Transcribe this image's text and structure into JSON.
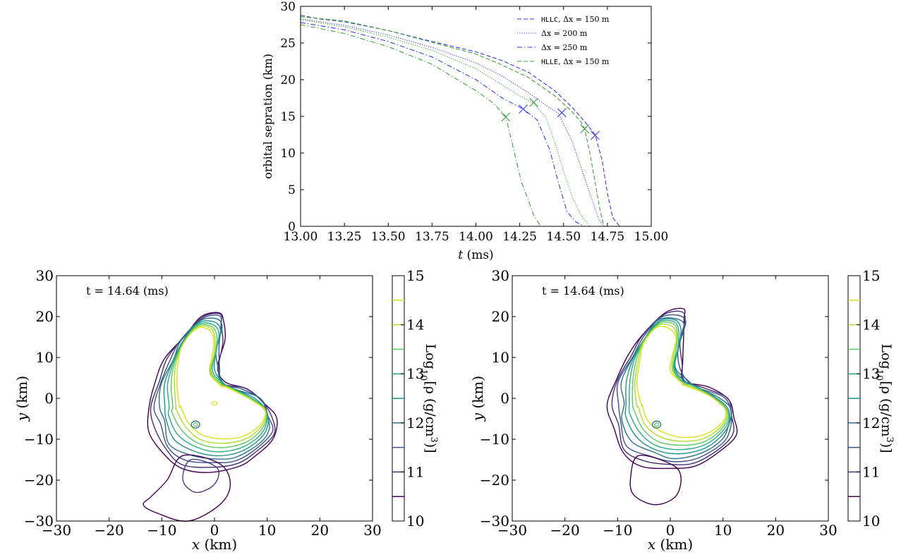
{
  "chart_data": [
    {
      "type": "line",
      "xlabel": "t (ms)",
      "ylabel": "orbital sepration (km)",
      "xlim": [
        13.0,
        15.0
      ],
      "ylim": [
        0,
        30
      ],
      "xticks": [
        "13.00",
        "13.25",
        "13.50",
        "13.75",
        "14.00",
        "14.25",
        "14.50",
        "14.75",
        "15.00"
      ],
      "yticks": [
        "0",
        "5",
        "10",
        "15",
        "20",
        "25",
        "30"
      ],
      "legend_position": "top-right",
      "series": [
        {
          "name_mono": "HLLC",
          "name": ", Δx = 150 m",
          "color": "#3a3af0",
          "style": "dashed",
          "x": [
            13.0,
            13.1,
            13.25,
            13.5,
            13.75,
            14.0,
            14.15,
            14.3,
            14.45,
            14.55,
            14.62,
            14.68,
            14.72,
            14.75,
            14.78,
            14.82,
            15.0
          ],
          "y": [
            28.8,
            28.3,
            27.9,
            26.7,
            25.2,
            23.8,
            22.6,
            21.0,
            18.5,
            16.2,
            14.3,
            12.5,
            9.0,
            4.5,
            1.2,
            0.0,
            0.0
          ],
          "marker": {
            "x": 14.68,
            "y": 12.4
          }
        },
        {
          "name": "Δx = 200 m",
          "color": "#3a3af0",
          "style": "dotted",
          "x": [
            13.0,
            13.25,
            13.5,
            13.75,
            14.0,
            14.15,
            14.3,
            14.4,
            14.47,
            14.55,
            14.6,
            14.65,
            14.7,
            14.73
          ],
          "y": [
            28.3,
            27.4,
            26.1,
            24.4,
            22.3,
            20.5,
            18.2,
            16.5,
            15.4,
            11.5,
            8.0,
            4.5,
            1.0,
            0.0
          ],
          "marker": {
            "x": 14.49,
            "y": 15.5
          }
        },
        {
          "name": "Δx = 250 m",
          "color": "#3a3af0",
          "style": "dashdot",
          "x": [
            13.0,
            13.25,
            13.5,
            13.75,
            14.0,
            14.15,
            14.27,
            14.35,
            14.42,
            14.47,
            14.52,
            14.57,
            14.62,
            14.7
          ],
          "y": [
            27.8,
            26.8,
            25.2,
            23.1,
            20.0,
            17.5,
            16.0,
            14.5,
            10.5,
            6.0,
            2.0,
            0.6,
            0.0,
            0.0
          ],
          "marker": {
            "x": 14.27,
            "y": 16.0
          }
        },
        {
          "name_mono": "HLLE",
          "name": ", Δx = 150 m",
          "color": "#3ca13c",
          "style": "dashed",
          "x": [
            13.0,
            13.25,
            13.5,
            13.75,
            14.0,
            14.15,
            14.3,
            14.45,
            14.55,
            14.6,
            14.62,
            14.65,
            14.68,
            14.71,
            14.73
          ],
          "y": [
            28.6,
            28.0,
            26.7,
            25.1,
            23.5,
            22.0,
            20.3,
            17.8,
            15.6,
            14.2,
            13.3,
            10.0,
            6.0,
            2.0,
            0.0
          ],
          "marker": {
            "x": 14.62,
            "y": 13.3
          }
        },
        {
          "name": "",
          "color": "#3ca13c",
          "style": "dotted",
          "x": [
            13.0,
            13.25,
            13.5,
            13.75,
            14.0,
            14.15,
            14.25,
            14.33,
            14.4,
            14.45,
            14.5,
            14.55,
            14.6,
            14.65
          ],
          "y": [
            28.2,
            27.2,
            25.8,
            24.0,
            21.5,
            19.3,
            17.8,
            16.8,
            14.8,
            11.5,
            7.5,
            4.0,
            1.5,
            0.0
          ],
          "marker": {
            "x": 14.33,
            "y": 16.9
          }
        },
        {
          "name": "",
          "color": "#3ca13c",
          "style": "dashdot",
          "x": [
            13.0,
            13.25,
            13.5,
            13.75,
            14.0,
            14.1,
            14.17,
            14.22,
            14.26,
            14.3,
            14.33,
            14.37,
            14.4
          ],
          "y": [
            27.5,
            26.3,
            24.5,
            22.1,
            18.5,
            16.8,
            15.0,
            10.0,
            6.0,
            3.5,
            1.5,
            0.0,
            0.0
          ],
          "marker": {
            "x": 14.17,
            "y": 14.9
          }
        }
      ]
    },
    {
      "type": "contour",
      "annotation": "t = 14.64 (ms)",
      "xlabel": "x (km)",
      "ylabel": "y (km)",
      "xlim": [
        -30,
        30
      ],
      "ylim": [
        -30,
        30
      ],
      "xticks": [
        "−30",
        "−20",
        "−10",
        "0",
        "10",
        "20",
        "30"
      ],
      "yticks": [
        "−30",
        "−20",
        "−10",
        "0",
        "10",
        "20",
        "30"
      ],
      "colorbar": {
        "label": "Log10[ρ (g/cm3)]",
        "label_parts": {
          "pre": "Log",
          "sub": "10",
          "mid": "[ρ (g/cm",
          "sup": "3",
          "post": ")]"
        },
        "ticks": [
          "10",
          "11",
          "12",
          "13",
          "14",
          "15"
        ],
        "range": [
          10,
          15
        ],
        "levels": [
          10.5,
          11.0,
          11.5,
          12.0,
          12.5,
          13.0,
          13.5,
          14.0,
          14.5
        ]
      }
    },
    {
      "type": "contour",
      "annotation": "t = 14.64 (ms)",
      "xlabel": "x (km)",
      "ylabel": "y (km)",
      "xlim": [
        -30,
        30
      ],
      "ylim": [
        -30,
        30
      ],
      "xticks": [
        "−30",
        "−20",
        "−10",
        "0",
        "10",
        "20",
        "30"
      ],
      "yticks": [
        "−30",
        "−20",
        "−10",
        "0",
        "10",
        "20",
        "30"
      ],
      "colorbar": {
        "label": "Log10[ρ (g/cm3)]",
        "label_parts": {
          "pre": "Log",
          "sub": "10",
          "mid": "[ρ (g/cm",
          "sup": "3",
          "post": ")]"
        },
        "ticks": [
          "10",
          "11",
          "12",
          "13",
          "14",
          "15"
        ],
        "range": [
          10,
          15
        ],
        "levels": [
          10.5,
          11.0,
          11.5,
          12.0,
          12.5,
          13.0,
          13.5,
          14.0,
          14.5
        ]
      }
    }
  ]
}
